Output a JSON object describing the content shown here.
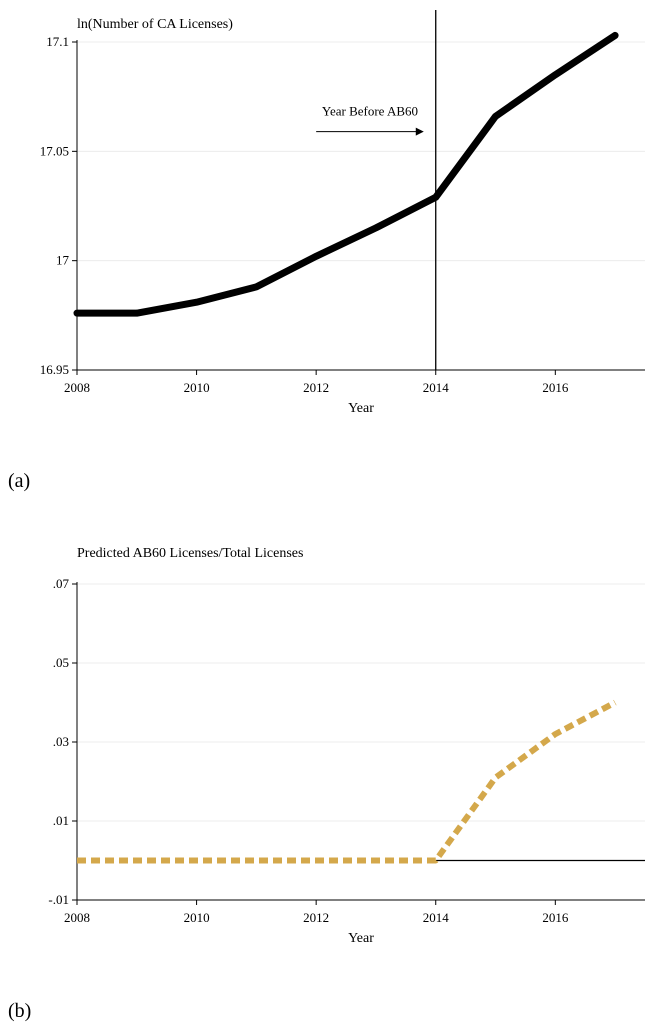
{
  "chart_data": [
    {
      "type": "line",
      "title": "ln(Number of CA Licenses)",
      "xlabel": "Year",
      "ylabel": "",
      "xlim": [
        2008,
        2017.5
      ],
      "ylim": [
        16.95,
        17.1
      ],
      "x_ticks": [
        2008,
        2010,
        2012,
        2014,
        2016
      ],
      "x_tick_labels": [
        "2008",
        "2010",
        "2012",
        "2014",
        "2016"
      ],
      "y_ticks": [
        16.95,
        17,
        17.05,
        17.1
      ],
      "y_tick_labels": [
        "16.95",
        "17",
        "17.05",
        "17.1"
      ],
      "grid": true,
      "series": [
        {
          "color": "#000000",
          "style": "solid",
          "x": [
            2008,
            2009,
            2010,
            2011,
            2012,
            2013,
            2014,
            2015,
            2016,
            2017
          ],
          "y": [
            16.976,
            16.976,
            16.981,
            16.988,
            17.002,
            17.015,
            17.029,
            17.066,
            17.085,
            17.103
          ]
        }
      ],
      "vertical_line": {
        "x": 2014
      },
      "annotation": {
        "text": "Year Before AB60",
        "arrow_from": [
          2012,
          17.059
        ],
        "arrow_to": [
          2013.8,
          17.059
        ]
      },
      "panel_label": "(a)"
    },
    {
      "type": "line",
      "title": "Predicted AB60 Licenses/Total Licenses",
      "xlabel": "Year",
      "ylabel": "",
      "xlim": [
        2008,
        2017.5
      ],
      "ylim": [
        -0.01,
        0.07
      ],
      "x_ticks": [
        2008,
        2010,
        2012,
        2014,
        2016
      ],
      "x_tick_labels": [
        "2008",
        "2010",
        "2012",
        "2014",
        "2016"
      ],
      "y_ticks": [
        -0.01,
        0.01,
        0.03,
        0.05,
        0.07
      ],
      "y_tick_labels": [
        "-.01",
        ".01",
        ".03",
        ".05",
        ".07"
      ],
      "grid": true,
      "zero_line": 0,
      "series": [
        {
          "color": "#D4A84B",
          "style": "dashed",
          "x": [
            2008,
            2009,
            2010,
            2011,
            2012,
            2013,
            2014,
            2015,
            2016,
            2017
          ],
          "y": [
            0,
            0,
            0,
            0,
            0,
            0,
            0,
            0.021,
            0.032,
            0.04
          ]
        }
      ],
      "panel_label": "(b)"
    }
  ]
}
